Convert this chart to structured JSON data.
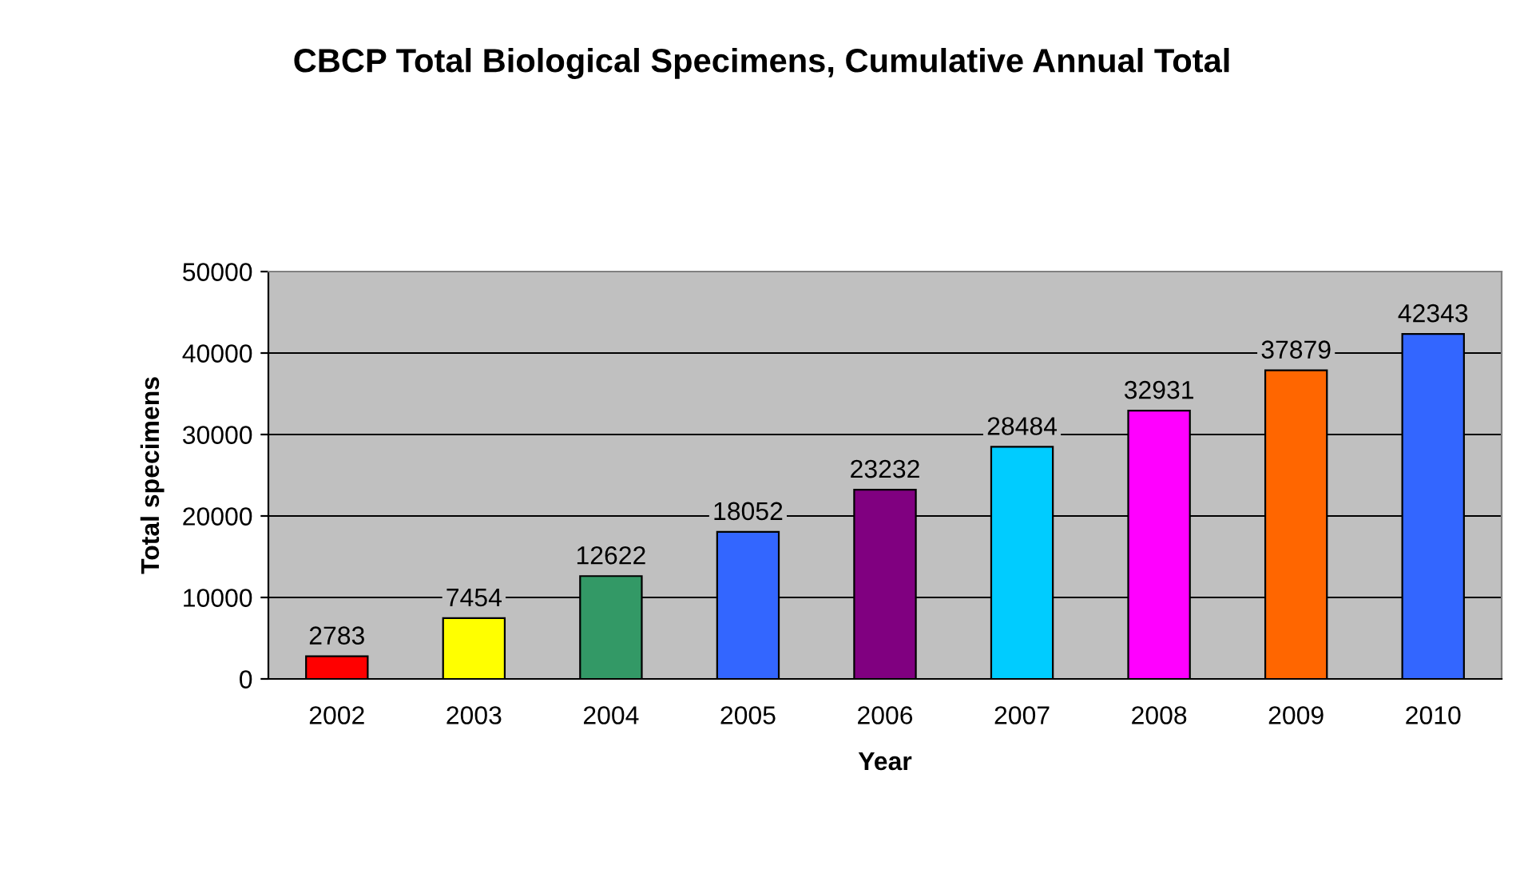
{
  "chart_data": {
    "type": "bar",
    "title": "CBCP Total Biological Specimens, Cumulative Annual Total",
    "xlabel": "Year",
    "ylabel": "Total specimens",
    "categories": [
      "2002",
      "2003",
      "2004",
      "2005",
      "2006",
      "2007",
      "2008",
      "2009",
      "2010"
    ],
    "values": [
      2783,
      7454,
      12622,
      18052,
      23232,
      28484,
      32931,
      37879,
      42343
    ],
    "colors": [
      "#ff0000",
      "#ffff00",
      "#339966",
      "#3366ff",
      "#800080",
      "#00ccff",
      "#ff00ff",
      "#ff6600",
      "#3366ff"
    ],
    "ylim": [
      0,
      50000
    ],
    "yticks": [
      0,
      10000,
      20000,
      30000,
      40000,
      50000
    ],
    "grid": "y",
    "data_labels": true,
    "legend": false
  }
}
